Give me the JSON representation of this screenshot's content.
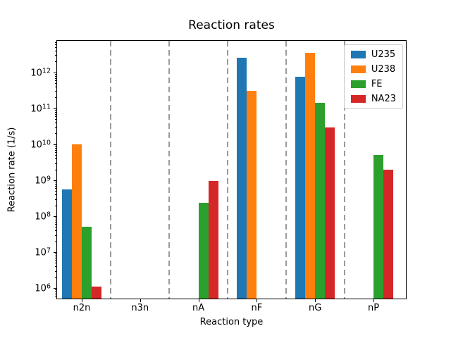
{
  "chart_data": {
    "type": "bar",
    "title": "Reaction rates",
    "xlabel": "Reaction type",
    "ylabel": "Reaction rate (1/s)",
    "yscale": "log",
    "ylim": [
      510000,
      7530000000000
    ],
    "ytick_exponents": [
      6,
      7,
      8,
      9,
      10,
      11,
      12
    ],
    "categories": [
      "n2n",
      "n3n",
      "nA",
      "nF",
      "nG",
      "nP"
    ],
    "series": [
      {
        "name": "U235",
        "color": "#1f77b4",
        "values": [
          550000000,
          0,
          0,
          2600000000000,
          750000000000,
          0
        ]
      },
      {
        "name": "U238",
        "color": "#ff7f0e",
        "values": [
          10000000000,
          0,
          0,
          300000000000,
          3500000000000,
          0
        ]
      },
      {
        "name": "FE",
        "color": "#2ca02c",
        "values": [
          50000000,
          0,
          240000000,
          0,
          145000000000,
          5000000000
        ]
      },
      {
        "name": "NA23",
        "color": "#d62728",
        "values": [
          1100000,
          0,
          950000000,
          0,
          30000000000,
          2000000000
        ]
      }
    ],
    "separator_positions": [
      0.5,
      1.5,
      2.5,
      3.5,
      4.5
    ],
    "separator_color": "#9b9b9b",
    "grid": "vertical dashed category separators",
    "legend_position": "upper right"
  }
}
